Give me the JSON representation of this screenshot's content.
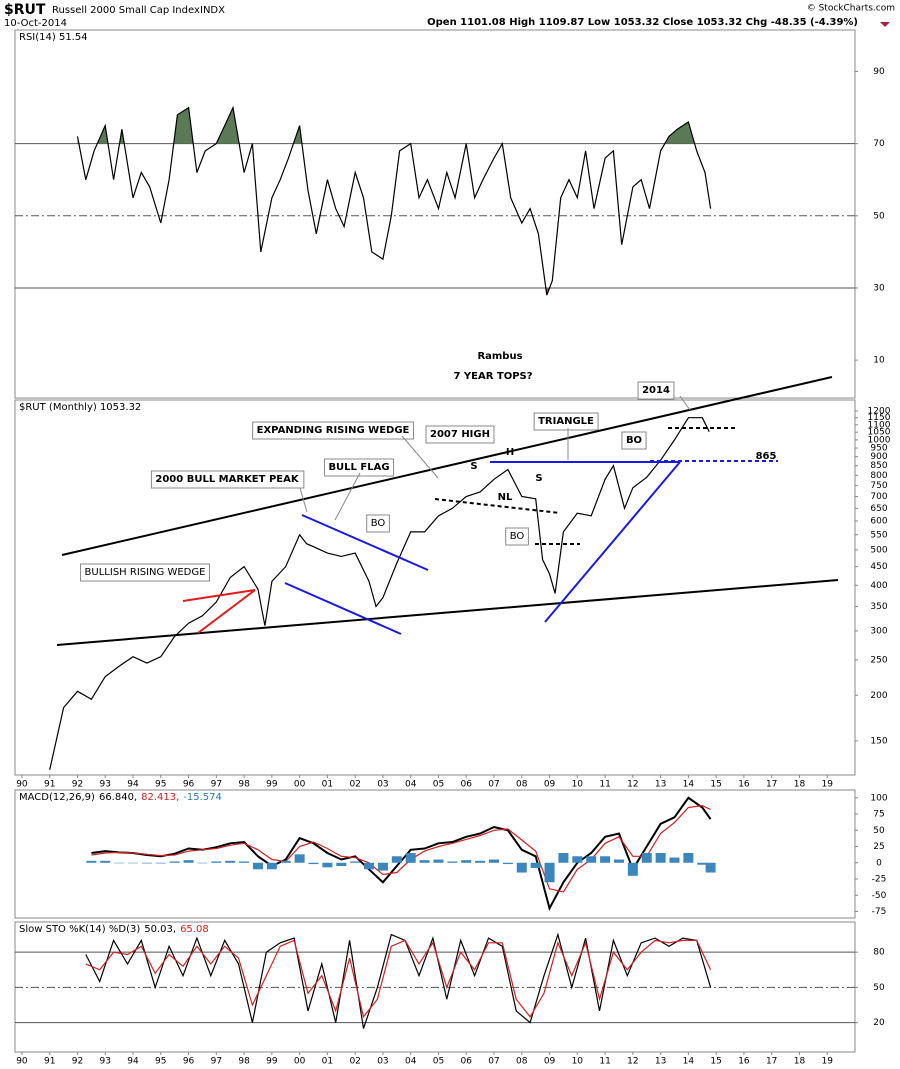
{
  "header": {
    "symbol": "$RUT",
    "name": "Russell 2000 Small Cap Index",
    "exchange": "INDX",
    "date": "10-Oct-2014",
    "quote": "Open 1101.08  High 1109.87  Low 1053.32  Close 1053.32  Chg -48.35 (-4.39%)",
    "copyright": "© StockCharts.com"
  },
  "chart_data": [
    {
      "type": "line",
      "legend": [
        {
          "text": "RSI(14) 51.54",
          "color": "#000000"
        }
      ],
      "ylim": [
        -0.5,
        101.5
      ],
      "yticks": [
        90,
        70,
        50,
        30,
        10
      ],
      "reference_lines": [
        {
          "value": 70,
          "dash": false
        },
        {
          "value": 50,
          "dash": true
        },
        {
          "value": 30,
          "dash": false
        }
      ],
      "x": [
        1992,
        1992.3,
        1992.6,
        1993,
        1993.3,
        1993.6,
        1994,
        1994.3,
        1994.6,
        1995,
        1995.3,
        1995.6,
        1996,
        1996.3,
        1996.6,
        1997,
        1997.3,
        1997.6,
        1998,
        1998.3,
        1998.6,
        1999,
        1999.3,
        1999.6,
        2000,
        2000.3,
        2000.6,
        2001,
        2001.3,
        2001.6,
        2002,
        2002.3,
        2002.6,
        2003,
        2003.3,
        2003.6,
        2004,
        2004.3,
        2004.6,
        2005,
        2005.3,
        2005.6,
        2006,
        2006.3,
        2006.6,
        2007,
        2007.3,
        2007.6,
        2008,
        2008.3,
        2008.6,
        2008.9,
        2009.1,
        2009.4,
        2009.7,
        2010,
        2010.3,
        2010.6,
        2011,
        2011.3,
        2011.6,
        2012,
        2012.3,
        2012.6,
        2013,
        2013.3,
        2013.6,
        2014,
        2014.3,
        2014.6,
        2014.8
      ],
      "series": [
        {
          "name": "RSI(14)",
          "color": "#000000",
          "values": [
            72,
            60,
            68,
            75,
            60,
            74,
            55,
            62,
            58,
            48,
            60,
            78,
            80,
            62,
            68,
            70,
            75,
            80,
            62,
            70,
            40,
            55,
            60,
            66,
            75,
            57,
            45,
            60,
            52,
            47,
            62,
            55,
            40,
            38,
            50,
            68,
            70,
            55,
            60,
            52,
            62,
            55,
            70,
            55,
            60,
            66,
            70,
            55,
            48,
            52,
            45,
            28,
            32,
            55,
            60,
            55,
            68,
            52,
            66,
            68,
            42,
            58,
            60,
            52,
            68,
            72,
            74,
            76,
            68,
            62,
            52
          ]
        }
      ],
      "annotations": [
        "Rambus",
        "7 YEAR TOPS?"
      ]
    },
    {
      "type": "line",
      "legend": [
        {
          "text": "$RUT (Monthly) 1053.32",
          "color": "#000000"
        }
      ],
      "log_scale": true,
      "xlim": [
        1989.75,
        2020
      ],
      "xticks": [
        {
          "value": 1990,
          "label": "90"
        },
        {
          "value": 1991,
          "label": "91"
        },
        {
          "value": 1992,
          "label": "92"
        },
        {
          "value": 1993,
          "label": "93"
        },
        {
          "value": 1994,
          "label": "94"
        },
        {
          "value": 1995,
          "label": "95"
        },
        {
          "value": 1996,
          "label": "96"
        },
        {
          "value": 1997,
          "label": "97"
        },
        {
          "value": 1998,
          "label": "98"
        },
        {
          "value": 1999,
          "label": "99"
        },
        {
          "value": 2000,
          "label": "00"
        },
        {
          "value": 2001,
          "label": "01"
        },
        {
          "value": 2002,
          "label": "02"
        },
        {
          "value": 2003,
          "label": "03"
        },
        {
          "value": 2004,
          "label": "04"
        },
        {
          "value": 2005,
          "label": "05"
        },
        {
          "value": 2006,
          "label": "06"
        },
        {
          "value": 2007,
          "label": "07"
        },
        {
          "value": 2008,
          "label": "08"
        },
        {
          "value": 2009,
          "label": "09"
        },
        {
          "value": 2010,
          "label": "10"
        },
        {
          "value": 2011,
          "label": "11"
        },
        {
          "value": 2012,
          "label": "12"
        },
        {
          "value": 2013,
          "label": "13"
        },
        {
          "value": 2014,
          "label": "14"
        },
        {
          "value": 2015,
          "label": "15"
        },
        {
          "value": 2016,
          "label": "16"
        },
        {
          "value": 2017,
          "label": "17"
        },
        {
          "value": 2018,
          "label": "18"
        },
        {
          "value": 2019,
          "label": "19"
        }
      ],
      "ylim": [
        121,
        1286
      ],
      "yticks": [
        150,
        200,
        250,
        300,
        350,
        400,
        450,
        500,
        550,
        600,
        650,
        700,
        750,
        800,
        850,
        900,
        950,
        1000,
        1050,
        1100,
        1150,
        1200
      ],
      "x": [
        1991,
        1991.5,
        1992,
        1992.5,
        1993,
        1993.5,
        1994,
        1994.5,
        1995,
        1995.5,
        1996,
        1996.5,
        1997,
        1997.5,
        1998,
        1998.5,
        1998.75,
        1999,
        1999.5,
        2000,
        2000.25,
        2000.5,
        2001,
        2001.5,
        2002,
        2002.5,
        2002.75,
        2003,
        2003.5,
        2004,
        2004.5,
        2005,
        2005.5,
        2006,
        2006.5,
        2007,
        2007.5,
        2008,
        2008.5,
        2008.75,
        2009,
        2009.2,
        2009.5,
        2010,
        2010.5,
        2011,
        2011.3,
        2011.7,
        2012,
        2012.5,
        2013,
        2013.5,
        2014,
        2014.5,
        2014.75
      ],
      "series": [
        {
          "name": "$RUT",
          "color": "#000000",
          "values": [
            125,
            185,
            205,
            195,
            225,
            240,
            255,
            245,
            255,
            290,
            315,
            330,
            360,
            420,
            450,
            390,
            310,
            410,
            450,
            550,
            520,
            510,
            490,
            480,
            490,
            410,
            350,
            370,
            460,
            560,
            560,
            620,
            650,
            700,
            720,
            780,
            830,
            700,
            690,
            470,
            430,
            380,
            560,
            630,
            620,
            780,
            850,
            650,
            740,
            790,
            880,
            1000,
            1150,
            1150,
            1053
          ]
        }
      ],
      "annotations": [
        "2014",
        "EXPANDING RISING WEDGE",
        "2007 HIGH",
        "TRIANGLE",
        "BO",
        "865",
        "H",
        "S",
        "S",
        "NL",
        "BO",
        "BO",
        "2000 BULL MARKET PEAK",
        "BULL FLAG",
        "BULLISH RISING WEDGE"
      ]
    },
    {
      "type": "macd",
      "legend": [
        {
          "text": "MACD(12,26,9)",
          "color": "#000000"
        },
        {
          "text": "66.840,",
          "color": "#000000"
        },
        {
          "text": "82.413,",
          "color": "#d42020"
        },
        {
          "text": "-15.574",
          "color": "#2a7ab0"
        }
      ],
      "ylim": [
        -85,
        112
      ],
      "yticks": [
        100,
        75,
        50,
        25,
        0,
        -25,
        -50,
        -75
      ],
      "x": [
        1992.5,
        1993,
        1993.5,
        1994,
        1994.5,
        1995,
        1995.5,
        1996,
        1996.5,
        1997,
        1997.5,
        1998,
        1998.5,
        1999,
        1999.5,
        2000,
        2000.5,
        2001,
        2001.5,
        2002,
        2002.5,
        2003,
        2003.5,
        2004,
        2004.5,
        2005,
        2005.5,
        2006,
        2006.5,
        2007,
        2007.5,
        2008,
        2008.5,
        2009,
        2009.5,
        2010,
        2010.5,
        2011,
        2011.5,
        2012,
        2012.5,
        2013,
        2013.5,
        2014,
        2014.5,
        2014.8
      ],
      "series": [
        {
          "name": "MACD",
          "color": "#000000",
          "values": [
            15,
            18,
            16,
            15,
            12,
            10,
            14,
            22,
            20,
            24,
            30,
            32,
            10,
            -5,
            5,
            38,
            30,
            15,
            5,
            10,
            -10,
            -30,
            -5,
            20,
            22,
            30,
            32,
            40,
            45,
            55,
            50,
            20,
            10,
            -70,
            -30,
            0,
            15,
            40,
            45,
            -10,
            25,
            60,
            70,
            100,
            85,
            67
          ]
        },
        {
          "name": "Signal",
          "color": "#d42020",
          "values": [
            12,
            15,
            16,
            15,
            13,
            11,
            12,
            18,
            20,
            22,
            27,
            30,
            20,
            5,
            2,
            25,
            32,
            22,
            10,
            8,
            0,
            -18,
            -15,
            5,
            18,
            25,
            30,
            36,
            42,
            50,
            52,
            35,
            18,
            -40,
            -45,
            -10,
            5,
            30,
            40,
            10,
            10,
            45,
            62,
            85,
            88,
            82
          ]
        },
        {
          "name": "Histogram",
          "color": "#3a86bd",
          "bars": true,
          "values": [
            3,
            3,
            0,
            0,
            -1,
            -1,
            2,
            4,
            0,
            2,
            3,
            2,
            -10,
            -10,
            3,
            13,
            -2,
            -7,
            -5,
            2,
            -10,
            -12,
            10,
            15,
            4,
            5,
            2,
            4,
            3,
            5,
            -2,
            -15,
            -8,
            -30,
            15,
            10,
            10,
            10,
            5,
            -20,
            15,
            15,
            8,
            15,
            -3,
            -15
          ]
        }
      ]
    },
    {
      "type": "line",
      "legend": [
        {
          "text": "Slow STO %K(14) %D(3)",
          "color": "#000000"
        },
        {
          "text": "50.03,",
          "color": "#000000"
        },
        {
          "text": "65.08",
          "color": "#d42020"
        }
      ],
      "xlim": [
        1989.75,
        2020
      ],
      "xticks": [
        {
          "value": 1990,
          "label": "90"
        },
        {
          "value": 1991,
          "label": "91"
        },
        {
          "value": 1992,
          "label": "92"
        },
        {
          "value": 1993,
          "label": "93"
        },
        {
          "value": 1994,
          "label": "94"
        },
        {
          "value": 1995,
          "label": "95"
        },
        {
          "value": 1996,
          "label": "96"
        },
        {
          "value": 1997,
          "label": "97"
        },
        {
          "value": 1998,
          "label": "98"
        },
        {
          "value": 1999,
          "label": "99"
        },
        {
          "value": 2000,
          "label": "00"
        },
        {
          "value": 2001,
          "label": "01"
        },
        {
          "value": 2002,
          "label": "02"
        },
        {
          "value": 2003,
          "label": "03"
        },
        {
          "value": 2004,
          "label": "04"
        },
        {
          "value": 2005,
          "label": "05"
        },
        {
          "value": 2006,
          "label": "06"
        },
        {
          "value": 2007,
          "label": "07"
        },
        {
          "value": 2008,
          "label": "08"
        },
        {
          "value": 2009,
          "label": "09"
        },
        {
          "value": 2010,
          "label": "10"
        },
        {
          "value": 2011,
          "label": "11"
        },
        {
          "value": 2012,
          "label": "12"
        },
        {
          "value": 2013,
          "label": "13"
        },
        {
          "value": 2014,
          "label": "14"
        },
        {
          "value": 2015,
          "label": "15"
        },
        {
          "value": 2016,
          "label": "16"
        },
        {
          "value": 2017,
          "label": "17"
        },
        {
          "value": 2018,
          "label": "18"
        },
        {
          "value": 2019,
          "label": "19"
        }
      ],
      "ylim": [
        -5,
        105.7
      ],
      "yticks": [
        80,
        50,
        20
      ],
      "reference_lines": [
        {
          "value": 80,
          "dash": false
        },
        {
          "value": 50,
          "dash": true
        },
        {
          "value": 20,
          "dash": false
        }
      ],
      "x": [
        1992.3,
        1992.8,
        1993.3,
        1993.8,
        1994.3,
        1994.8,
        1995.3,
        1995.8,
        1996.3,
        1996.8,
        1997.3,
        1997.8,
        1998.3,
        1998.8,
        1999.3,
        1999.8,
        2000.3,
        2000.8,
        2001.3,
        2001.8,
        2002.3,
        2002.8,
        2003.3,
        2003.8,
        2004.3,
        2004.8,
        2005.3,
        2005.8,
        2006.3,
        2006.8,
        2007.3,
        2007.8,
        2008.3,
        2008.8,
        2009.3,
        2009.8,
        2010.3,
        2010.8,
        2011.3,
        2011.8,
        2012.3,
        2012.8,
        2013.3,
        2013.8,
        2014.3,
        2014.8
      ],
      "series": [
        {
          "name": "%K",
          "color": "#000000",
          "values": [
            78,
            55,
            90,
            70,
            90,
            50,
            85,
            60,
            92,
            60,
            90,
            70,
            20,
            80,
            88,
            92,
            30,
            70,
            20,
            90,
            15,
            50,
            95,
            90,
            60,
            92,
            40,
            90,
            60,
            92,
            85,
            30,
            20,
            60,
            95,
            50,
            92,
            30,
            90,
            60,
            88,
            92,
            85,
            92,
            90,
            50
          ]
        },
        {
          "name": "%D",
          "color": "#d42020",
          "values": [
            70,
            65,
            80,
            78,
            85,
            62,
            78,
            68,
            85,
            70,
            85,
            75,
            35,
            60,
            85,
            90,
            45,
            60,
            30,
            75,
            25,
            40,
            85,
            90,
            70,
            88,
            50,
            80,
            65,
            88,
            88,
            40,
            25,
            45,
            88,
            60,
            88,
            40,
            80,
            65,
            80,
            90,
            88,
            90,
            90,
            65
          ]
        }
      ]
    }
  ]
}
